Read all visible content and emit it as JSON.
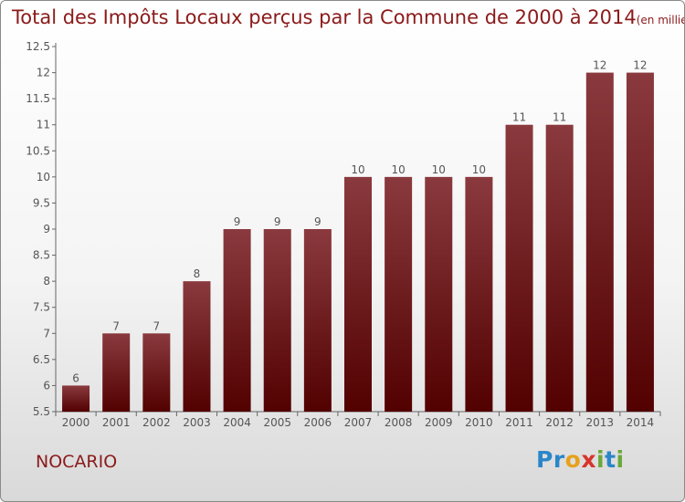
{
  "header": {
    "title": "Total des Impôts Locaux perçus par la Commune de 2000 à 2014",
    "unit": "(en milliers d'€)"
  },
  "footer": {
    "commune": "NOCARIO",
    "brand": "Proxiti",
    "brand_letters": [
      {
        "ch": "P",
        "color": "#2b86c9"
      },
      {
        "ch": "r",
        "color": "#2b86c9"
      },
      {
        "ch": "o",
        "color": "#e7a11c"
      },
      {
        "ch": "x",
        "color": "#d8342b"
      },
      {
        "ch": "i",
        "color": "#6aa83b"
      },
      {
        "ch": "t",
        "color": "#2b86c9"
      },
      {
        "ch": "i",
        "color": "#6aa83b"
      }
    ]
  },
  "colors": {
    "bar_top": "#8a3a3e",
    "bar_bottom": "#520000",
    "text": "#8b1a1a",
    "axis": "#555555"
  },
  "chart_data": {
    "type": "bar",
    "title": "Total des Impôts Locaux perçus par la Commune de 2000 à 2014",
    "subtitle": "(en milliers d'€)",
    "categories": [
      "2000",
      "2001",
      "2002",
      "2003",
      "2004",
      "2005",
      "2006",
      "2007",
      "2008",
      "2009",
      "2010",
      "2011",
      "2012",
      "2013",
      "2014"
    ],
    "values": [
      6,
      7,
      7,
      8,
      9,
      9,
      9,
      10,
      10,
      10,
      10,
      11,
      11,
      12,
      12
    ],
    "data_labels": [
      "6",
      "7",
      "7",
      "8",
      "9",
      "9",
      "9",
      "10",
      "10",
      "10",
      "10",
      "11",
      "11",
      "12",
      "12"
    ],
    "ylim": [
      5.5,
      12.5
    ],
    "yticks": [
      5.5,
      6,
      6.5,
      7,
      7.5,
      8,
      8.5,
      9,
      9.5,
      10,
      10.5,
      11,
      11.5,
      12,
      12.5
    ],
    "ytick_labels": [
      "5.5",
      "6",
      "6.5",
      "7",
      "7.5",
      "8",
      "8.5",
      "9",
      "9.5",
      "10",
      "10.5",
      "11",
      "11.5",
      "12",
      "12.5"
    ],
    "grid": false,
    "legend": "none"
  }
}
